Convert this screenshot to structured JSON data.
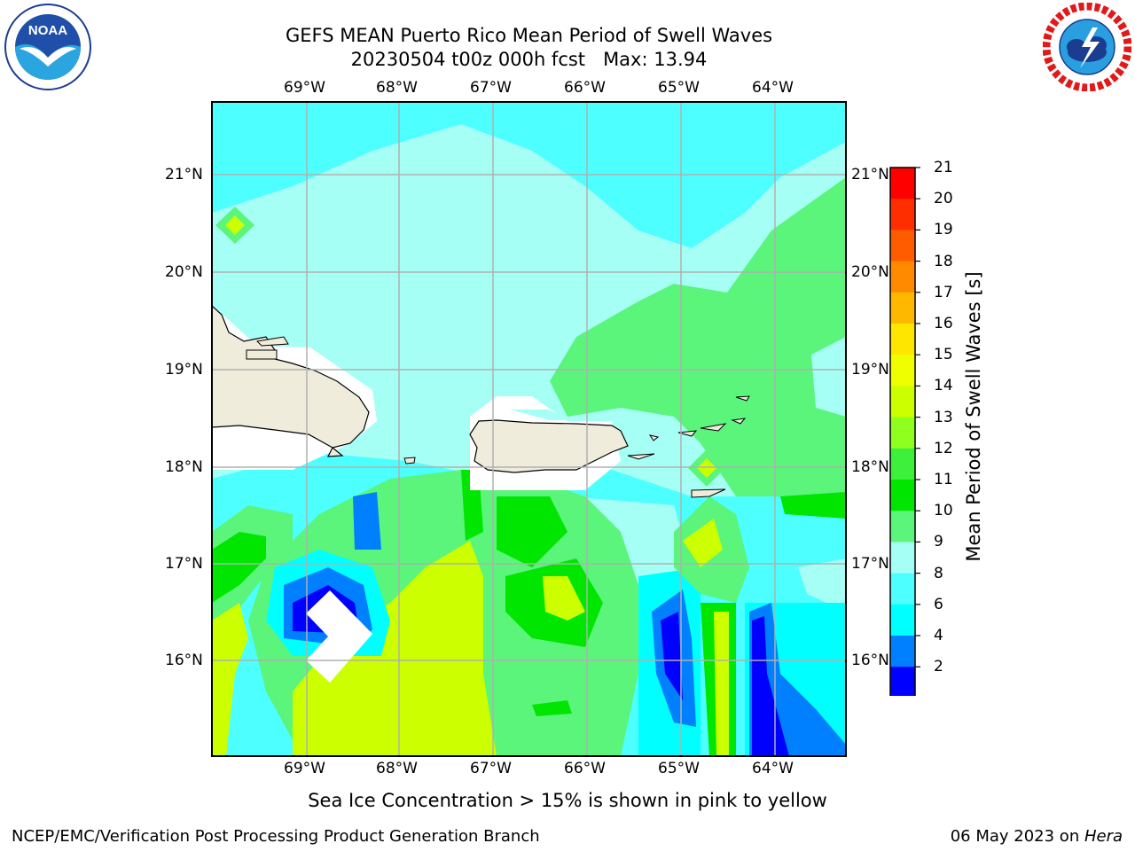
{
  "title": {
    "line1": "GEFS MEAN Puerto Rico Mean Period of Swell Waves",
    "line2": "20230504 t00z 000h fcst   Max: 13.94"
  },
  "map": {
    "lon_labels": [
      "69°W",
      "68°W",
      "67°W",
      "66°W",
      "65°W",
      "64°W"
    ],
    "lat_labels": [
      "21°N",
      "20°N",
      "19°N",
      "18°N",
      "17°N",
      "16°N"
    ],
    "land_color": "#efecdc",
    "grid_color": "#b0b0b0"
  },
  "colorbar": {
    "title": "Mean Period of Swell Waves [s]",
    "ticks": [
      "21",
      "20",
      "19",
      "18",
      "17",
      "16",
      "15",
      "14",
      "13",
      "12",
      "11",
      "10",
      "9",
      "8",
      "6",
      "4",
      "2"
    ],
    "colors": [
      "#ff0000",
      "#ff2e00",
      "#ff5c00",
      "#ff8a00",
      "#ffb800",
      "#ffe600",
      "#f0ff00",
      "#ccff00",
      "#8fff1f",
      "#3cf03c",
      "#00e600",
      "#5af57a",
      "#a6fff5",
      "#4dffff",
      "#00ffff",
      "#0080ff",
      "#0000ff"
    ],
    "under_color": "#0000ff"
  },
  "caption": "Sea Ice Concentration > 15% is shown in pink to yellow",
  "footer": {
    "left": "NCEP/EMC/Verification Post Processing Product Generation Branch",
    "date": "06 May 2023 on ",
    "machine": "Hera"
  },
  "logos": {
    "noaa_text": "NOAA",
    "nws_text": "NATIONAL WEATHER SERVICE"
  }
}
